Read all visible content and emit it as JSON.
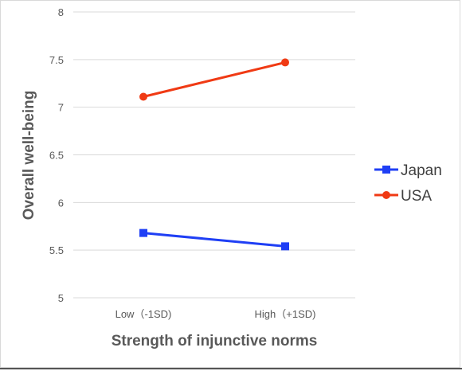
{
  "chart_data": {
    "type": "line",
    "categories": [
      "Low（-1SD)",
      "High（+1SD)"
    ],
    "series": [
      {
        "name": "Japan",
        "values": [
          5.68,
          5.54
        ],
        "color": "#1f3ff5",
        "marker": "square"
      },
      {
        "name": "USA",
        "values": [
          7.11,
          7.47
        ],
        "color": "#f03a14",
        "marker": "circle"
      }
    ],
    "yticks": [
      "5",
      "5.5",
      "6",
      "6.5",
      "7",
      "7.5",
      "8"
    ],
    "ylim": [
      5,
      8
    ],
    "xlabel": "Strength of injunctive norms",
    "ylabel": "Overall well-being",
    "grid": true,
    "legend_position": "right"
  }
}
